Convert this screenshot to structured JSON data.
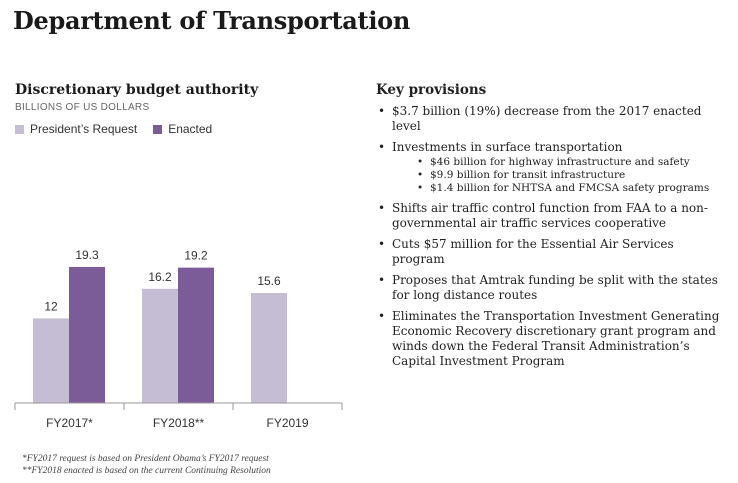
{
  "page": {
    "title": "Department of Transportation"
  },
  "chart_data": {
    "type": "bar",
    "title": "Discretionary budget authority",
    "subtitle": "BILLIONS OF US DOLLARS",
    "categories": [
      "FY2017*",
      "FY2018**",
      "FY2019"
    ],
    "series": [
      {
        "name": "President’s Request",
        "color": "#c5bdd3",
        "values": [
          12,
          16.2,
          15.6
        ],
        "labels": [
          "12",
          "16.2",
          "15.6"
        ]
      },
      {
        "name": "Enacted",
        "color": "#7c5c98",
        "values": [
          19.3,
          19.2,
          null
        ],
        "labels": [
          "19.3",
          "19.2",
          ""
        ]
      }
    ],
    "ylim": [
      0,
      22
    ],
    "grid": false,
    "legend_position": "top-left"
  },
  "footnotes": [
    "*FY2017 request is based on President Obama’s FY2017 request",
    "**FY2018 enacted is based on the current Continuing Resolution"
  ],
  "key_provisions": {
    "title": "Key provisions",
    "items": [
      {
        "text": "$3.7 billion (19%) decrease from the 2017 enacted level"
      },
      {
        "text": "Investments in surface transportation"
      },
      {
        "text": "Shifts air traffic control function from FAA to a non-governmental air traffic services cooperative"
      },
      {
        "text": "Cuts $57 million for the Essential Air Services program"
      },
      {
        "text": "Proposes that Amtrak funding be split with the states for long distance routes"
      },
      {
        "text": "Eliminates the Transportation Investment Generating Economic Recovery discretionary grant program and winds down the Federal Transit Administration’s Capital Investment Program"
      }
    ],
    "surface_sub": [
      "$46 billion for highway infrastructure and safety",
      "$9.9 billion for transit infrastructure",
      "$1.4 billion for NHTSA and FMCSA safety programs"
    ]
  }
}
